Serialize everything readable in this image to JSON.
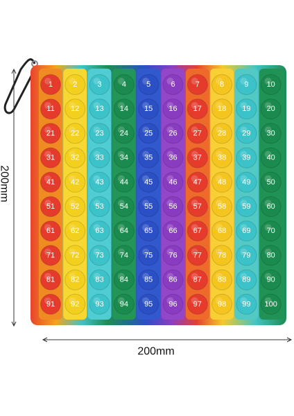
{
  "board": {
    "rows": [
      [
        1,
        2,
        3,
        4,
        5,
        6,
        7,
        8,
        9,
        10
      ],
      [
        11,
        12,
        13,
        14,
        15,
        16,
        17,
        18,
        19,
        20
      ],
      [
        21,
        22,
        23,
        24,
        25,
        26,
        27,
        28,
        29,
        30
      ],
      [
        31,
        32,
        33,
        34,
        35,
        36,
        37,
        38,
        39,
        40
      ],
      [
        41,
        42,
        43,
        44,
        45,
        46,
        47,
        48,
        49,
        50
      ],
      [
        51,
        52,
        53,
        54,
        55,
        56,
        57,
        58,
        59,
        60
      ],
      [
        61,
        62,
        63,
        64,
        65,
        66,
        67,
        68,
        69,
        70
      ],
      [
        71,
        72,
        73,
        74,
        75,
        76,
        77,
        78,
        79,
        80
      ],
      [
        81,
        82,
        83,
        84,
        85,
        86,
        87,
        88,
        89,
        90
      ],
      [
        91,
        92,
        93,
        94,
        95,
        96,
        97,
        98,
        99,
        100
      ]
    ]
  },
  "dimensions": {
    "height": "200mm",
    "width": "200mm"
  }
}
